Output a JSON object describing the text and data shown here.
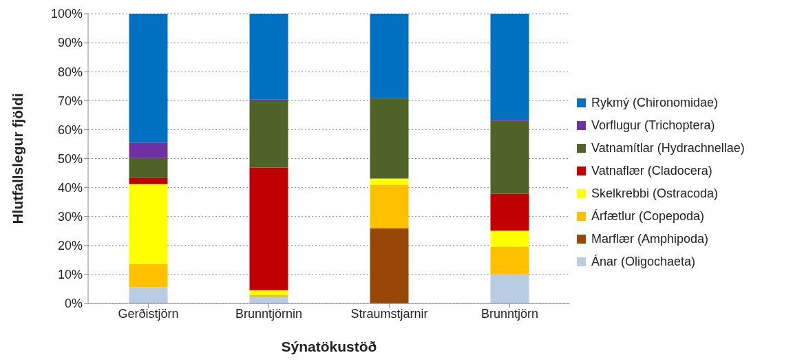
{
  "chart_data": {
    "type": "bar",
    "stacked": true,
    "xlabel": "Sýnatökustöð",
    "ylabel": "Hlutfallslegur fjöldi",
    "categories": [
      "Gerðistjörn",
      "Brunntjörnin",
      "Straumstjarnir",
      "Brunntjörn"
    ],
    "series": [
      {
        "name": "Ánar (Oligochaeta)",
        "color": "#b8cce4",
        "values": [
          5.6,
          2.4,
          0,
          10.1
        ]
      },
      {
        "name": "Marflær (Amphipoda)",
        "color": "#974706",
        "values": [
          0,
          0,
          25.9,
          0
        ]
      },
      {
        "name": "Árfætlur (Copepoda)",
        "color": "#ffc000",
        "values": [
          8.0,
          0.6,
          15.1,
          9.5
        ]
      },
      {
        "name": "Skelkrebbi (Ostracoda)",
        "color": "#ffff00",
        "values": [
          27.6,
          1.6,
          2.1,
          5.5
        ]
      },
      {
        "name": "Vatnaflær (Cladocera)",
        "color": "#c00000",
        "values": [
          2.2,
          42.3,
          0,
          12.8
        ]
      },
      {
        "name": "Vatnamítlar (Hydrachnellae)",
        "color": "#4f6228",
        "values": [
          6.8,
          23.2,
          27.8,
          25.1
        ]
      },
      {
        "name": "Vorflugur (Trichoptera)",
        "color": "#7030a0",
        "values": [
          5.3,
          0.4,
          0,
          0.4
        ]
      },
      {
        "name": "Rykmý (Chironomidae)",
        "color": "#0070c0",
        "values": [
          44.5,
          29.5,
          29.1,
          36.6
        ]
      }
    ],
    "ylim": [
      0,
      100
    ],
    "yticks": [
      {
        "value": 0,
        "label": "0%"
      },
      {
        "value": 10,
        "label": "10%"
      },
      {
        "value": 20,
        "label": "20%"
      },
      {
        "value": 30,
        "label": "30%"
      },
      {
        "value": 40,
        "label": "40%"
      },
      {
        "value": 50,
        "label": "50%"
      },
      {
        "value": 60,
        "label": "60%"
      },
      {
        "value": 70,
        "label": "70%"
      },
      {
        "value": 80,
        "label": "80%"
      },
      {
        "value": 90,
        "label": "90%"
      },
      {
        "value": 100,
        "label": "100%"
      }
    ],
    "grid": "y",
    "legend": "right"
  }
}
